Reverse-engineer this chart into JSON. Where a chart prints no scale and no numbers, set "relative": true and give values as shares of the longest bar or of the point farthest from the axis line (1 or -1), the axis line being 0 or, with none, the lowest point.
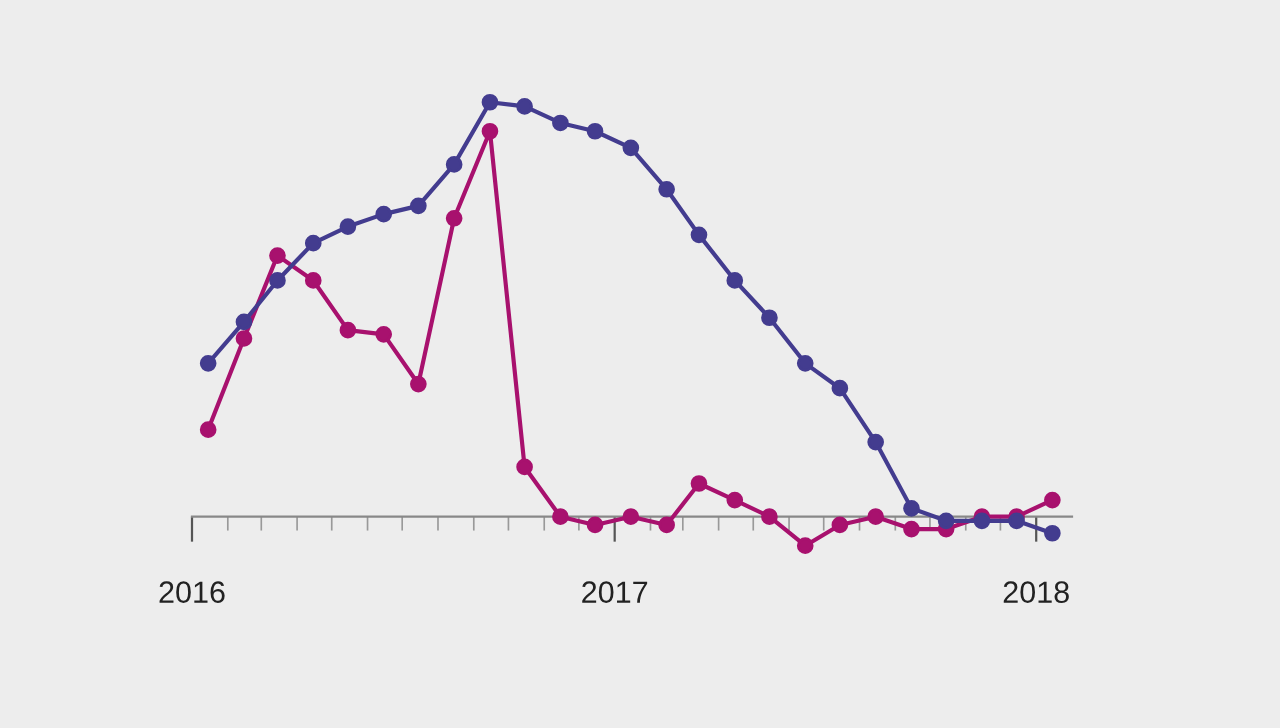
{
  "chart_data": {
    "type": "line",
    "relative": true,
    "marker": "circle",
    "line_style": "solid",
    "grid": false,
    "legend": false,
    "tick_labels": "x",
    "x": [
      "2016-01-15",
      "2016-02-15",
      "2016-03-15",
      "2016-04-15",
      "2016-05-15",
      "2016-06-15",
      "2016-07-15",
      "2016-08-15",
      "2016-09-15",
      "2016-10-15",
      "2016-11-15",
      "2016-12-15",
      "2017-01-15",
      "2017-02-15",
      "2017-03-15",
      "2017-04-15",
      "2017-05-15",
      "2017-06-15",
      "2017-07-15",
      "2017-08-15",
      "2017-09-15",
      "2017-10-15",
      "2017-11-15",
      "2017-12-15",
      "2018-01-15"
    ],
    "xlim": [
      "2016-01-01",
      "2018-02-01"
    ],
    "xticks": [
      {
        "value": "2016-01-01",
        "label": "2016"
      },
      {
        "value": "2016-02-01",
        "label": null
      },
      {
        "value": "2016-03-01",
        "label": null
      },
      {
        "value": "2016-04-01",
        "label": null
      },
      {
        "value": "2016-05-01",
        "label": null
      },
      {
        "value": "2016-06-01",
        "label": null
      },
      {
        "value": "2016-07-01",
        "label": null
      },
      {
        "value": "2016-08-01",
        "label": null
      },
      {
        "value": "2016-09-01",
        "label": null
      },
      {
        "value": "2016-10-01",
        "label": null
      },
      {
        "value": "2016-11-01",
        "label": null
      },
      {
        "value": "2016-12-01",
        "label": null
      },
      {
        "value": "2017-01-01",
        "label": "2017"
      },
      {
        "value": "2017-02-01",
        "label": null
      },
      {
        "value": "2017-03-01",
        "label": null
      },
      {
        "value": "2017-04-01",
        "label": null
      },
      {
        "value": "2017-05-01",
        "label": null
      },
      {
        "value": "2017-06-01",
        "label": null
      },
      {
        "value": "2017-07-01",
        "label": null
      },
      {
        "value": "2017-08-01",
        "label": null
      },
      {
        "value": "2017-09-01",
        "label": null
      },
      {
        "value": "2017-10-01",
        "label": null
      },
      {
        "value": "2017-11-01",
        "label": null
      },
      {
        "value": "2017-12-01",
        "label": null
      },
      {
        "value": "2018-01-01",
        "label": "2018"
      }
    ],
    "series": [
      {
        "color": "#433c8f",
        "values": [
          0.37,
          0.47,
          0.57,
          0.66,
          0.7,
          0.73,
          0.75,
          0.85,
          1,
          0.99,
          0.95,
          0.93,
          0.89,
          0.79,
          0.68,
          0.57,
          0.48,
          0.37,
          0.31,
          0.18,
          0.02,
          -0.01,
          -0.01,
          -0.01,
          -0.04
        ]
      },
      {
        "color": "#a8116e",
        "values": [
          0.21,
          0.43,
          0.63,
          0.57,
          0.45,
          0.44,
          0.32,
          0.72,
          0.93,
          0.12,
          0,
          -0.02,
          0,
          -0.02,
          0.08,
          0.04,
          0,
          -0.07,
          -0.02,
          0,
          -0.03,
          -0.03,
          0,
          0,
          0.04
        ]
      }
    ]
  }
}
